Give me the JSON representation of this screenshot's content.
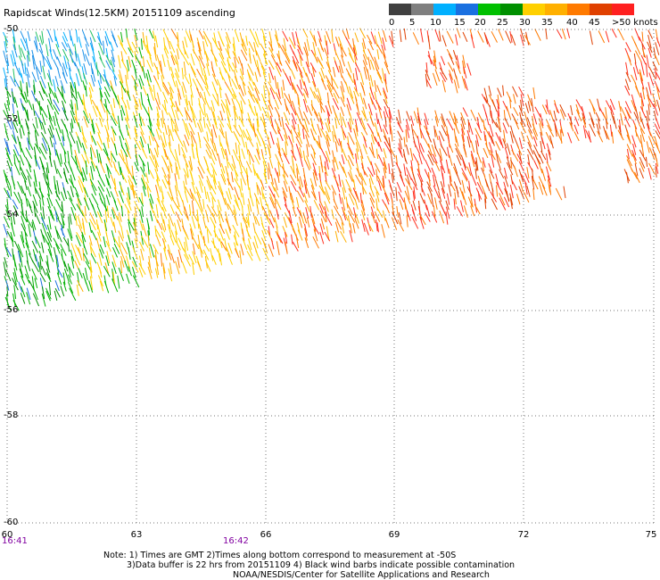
{
  "title": "Rapidscat Winds(12.5KM) 20151109 ascending",
  "legend": {
    "colors": [
      "#404040",
      "#7f7f7f",
      "#00b0ff",
      "#1a70e0",
      "#00c000",
      "#009000",
      "#ffd000",
      "#ffb000",
      "#ff7a00",
      "#e04000",
      "#ff2020",
      "#c01010",
      "#8b4513",
      "#5a2a10",
      "#ff00ff",
      "#c000ff",
      "#6000a0"
    ],
    "labels": [
      "0",
      "5",
      "10",
      "15",
      "20",
      "25",
      "30",
      "35",
      "40",
      "45",
      ">50 knots"
    ]
  },
  "axes": {
    "lat_labels": [
      "-50",
      "-52",
      "-54",
      "-56",
      "-58",
      "-60"
    ],
    "lon_labels": [
      "60",
      "63",
      "66",
      "69",
      "72",
      "75"
    ]
  },
  "time_labels": [
    "16:41",
    "16:42"
  ],
  "notes": [
    "Note: 1) Times are GMT 2)Times along bottom correspond to measurement at -50S",
    "3)Data buffer is 22 hrs from 20151109 4) Black wind barbs indicate possible contamination",
    "NOAA/NESDIS/Center for Satellite Applications and Research"
  ]
}
